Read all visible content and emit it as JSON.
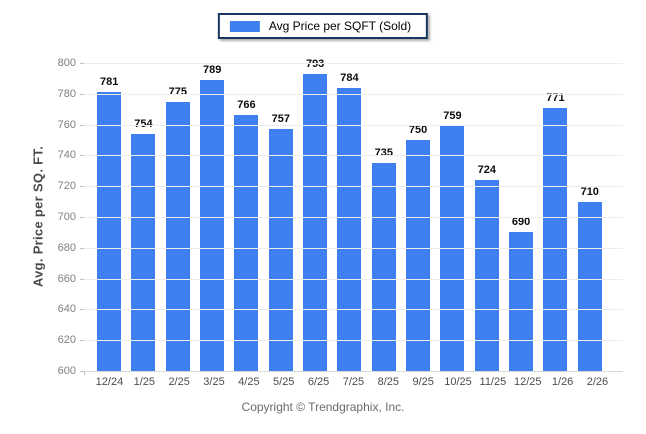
{
  "chart_data": {
    "type": "bar",
    "title": "",
    "legend": {
      "label": "Avg Price per SQFT (Sold)",
      "swatch_color": "#3F80F0"
    },
    "categories": [
      "12/24",
      "1/25",
      "2/25",
      "3/25",
      "4/25",
      "5/25",
      "6/25",
      "7/25",
      "8/25",
      "9/25",
      "10/25",
      "11/25",
      "12/25",
      "1/26",
      "2/26"
    ],
    "values": [
      781,
      754,
      775,
      789,
      766,
      757,
      793,
      784,
      735,
      750,
      759,
      724,
      690,
      771,
      710
    ],
    "xlabel": "",
    "ylabel": "Avg. Price per SQ. FT.",
    "ylim": [
      600,
      800
    ],
    "ytick_step": 20,
    "grid": true,
    "legend_position": "top-center",
    "bar_color": "#3F80F0",
    "value_labels": true
  },
  "footer": {
    "text": "Copyright © Trendgraphix, Inc."
  }
}
